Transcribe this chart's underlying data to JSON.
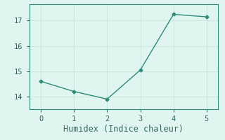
{
  "x": [
    0,
    1,
    2,
    3,
    4,
    5
  ],
  "y": [
    14.6,
    14.2,
    13.9,
    15.05,
    17.25,
    17.15
  ],
  "line_color": "#2d8b7a",
  "marker": "D",
  "marker_size": 2.5,
  "xlabel": "Humidex (Indice chaleur)",
  "ylim": [
    13.5,
    17.65
  ],
  "xlim": [
    -0.35,
    5.35
  ],
  "yticks": [
    14,
    15,
    16,
    17
  ],
  "xticks": [
    0,
    1,
    2,
    3,
    4,
    5
  ],
  "background_color": "#e0f5f0",
  "grid_color": "#c8e8e0",
  "font_color": "#2d6b5a",
  "font_family": "monospace",
  "xlabel_fontsize": 8.5,
  "tick_fontsize": 7.5,
  "linewidth": 1.0,
  "linestyle": "-"
}
